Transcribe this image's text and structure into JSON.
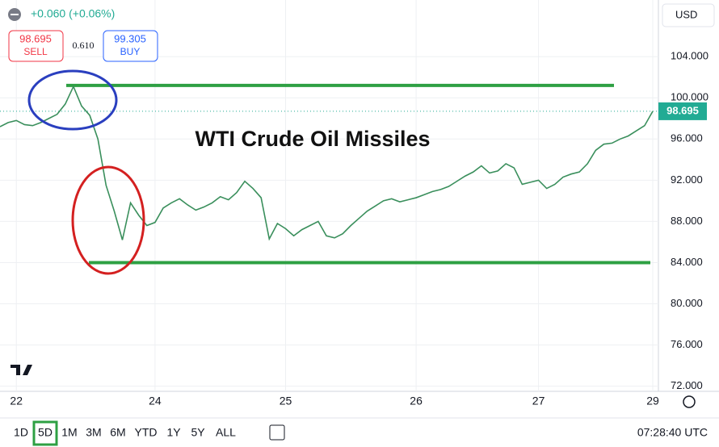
{
  "chart_data": {
    "type": "line",
    "title": "WTI Crude Oil Missiles",
    "change": "+0.060 (+0.06%)",
    "sell_price": "98.695",
    "sell_label": "SELL",
    "spread": "0.610",
    "buy_price": "99.305",
    "buy_label": "BUY",
    "currency": "USD",
    "last_price": 98.695,
    "levels": [
      {
        "value": 101.2,
        "color": "#2ea043"
      },
      {
        "value": 84,
        "color": "#2ea043"
      }
    ],
    "timeframes": [
      "1D",
      "5D",
      "1M",
      "3M",
      "6M",
      "YTD",
      "1Y",
      "5Y",
      "ALL"
    ],
    "active_timeframe": "5D",
    "clock": "07:28:40 UTC",
    "categories": [
      null,
      null,
      "22",
      null,
      null,
      null,
      null,
      null,
      null,
      null,
      null,
      null,
      null,
      null,
      null,
      null,
      null,
      null,
      null,
      "24",
      null,
      null,
      null,
      null,
      null,
      null,
      null,
      null,
      null,
      null,
      null,
      null,
      null,
      null,
      null,
      "25",
      null,
      null,
      null,
      null,
      null,
      null,
      null,
      null,
      null,
      null,
      null,
      null,
      null,
      null,
      null,
      "26",
      null,
      null,
      null,
      null,
      null,
      null,
      null,
      null,
      null,
      null,
      null,
      null,
      null,
      null,
      "27",
      null,
      null,
      null,
      null,
      null,
      null,
      null,
      null,
      null,
      null,
      null,
      null,
      null,
      "29"
    ],
    "series": [
      {
        "name": "WTI",
        "color": "#3a8f5c",
        "values": [
          97.2,
          97.6,
          97.8,
          97.4,
          97.3,
          97.6,
          98.0,
          98.4,
          99.4,
          101.1,
          99.2,
          98.3,
          96.0,
          91.5,
          89.0,
          86.2,
          89.8,
          88.6,
          87.6,
          87.9,
          89.3,
          89.8,
          90.2,
          89.6,
          89.1,
          89.4,
          89.8,
          90.4,
          90.1,
          90.8,
          91.9,
          91.2,
          90.3,
          86.3,
          87.8,
          87.3,
          86.6,
          87.2,
          87.6,
          88.0,
          86.6,
          86.4,
          86.8,
          87.6,
          88.3,
          89.0,
          89.5,
          90.0,
          90.2,
          89.9,
          90.1,
          90.3,
          90.6,
          90.9,
          91.1,
          91.4,
          91.9,
          92.4,
          92.8,
          93.4,
          92.7,
          92.9,
          93.6,
          93.2,
          91.6,
          91.8,
          92.0,
          91.2,
          91.6,
          92.3,
          92.6,
          92.8,
          93.6,
          94.9,
          95.5,
          95.6,
          96.0,
          96.3,
          96.8,
          97.3,
          98.7
        ]
      }
    ],
    "ylim": [
      71.5,
      109.5
    ],
    "yticks": [
      {
        "value": 72,
        "label": "72.000"
      },
      {
        "value": 76,
        "label": "76.000"
      },
      {
        "value": 80,
        "label": "80.000"
      },
      {
        "value": 84,
        "label": "84.000"
      },
      {
        "value": 88,
        "label": "88.000"
      },
      {
        "value": 92,
        "label": "92.000"
      },
      {
        "value": 96,
        "label": "96.000"
      },
      {
        "value": 100,
        "label": "100.000"
      },
      {
        "value": 104,
        "label": "104.000"
      }
    ],
    "grid": true
  }
}
